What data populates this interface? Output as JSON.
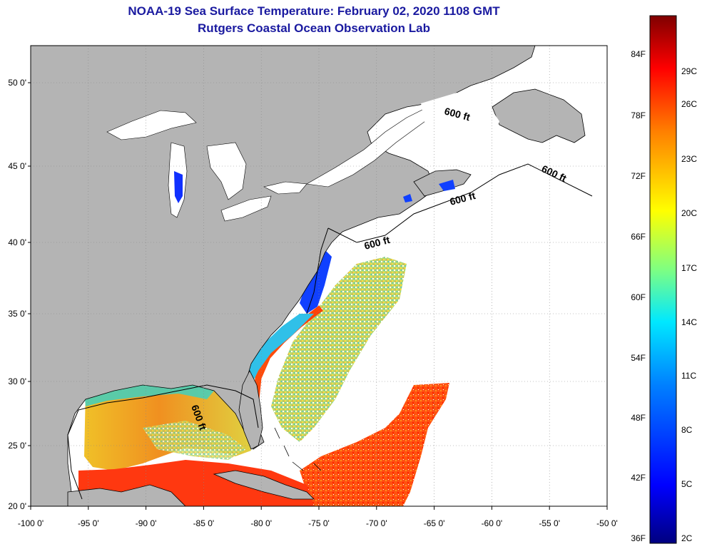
{
  "title": {
    "line1": "NOAA-19 Sea Surface Temperature:  February 02, 2020 1108 GMT",
    "line2": "Rutgers Coastal Ocean Observation Lab"
  },
  "map": {
    "lat_labels": [
      "50 0'",
      "45 0'",
      "40 0'",
      "35 0'",
      "30 0'",
      "25 0'",
      "20 0'"
    ],
    "lat_values": [
      50,
      45,
      40,
      35,
      30,
      25,
      20
    ],
    "lon_labels": [
      "-100 0'",
      "-95 0'",
      "-90 0'",
      "-85 0'",
      "-80 0'",
      "-75 0'",
      "-70 0'",
      "-65 0'",
      "-60 0'",
      "-55 0'",
      "-50 0'"
    ],
    "lon_values": [
      -100,
      -95,
      -90,
      -85,
      -80,
      -75,
      -70,
      -65,
      -60,
      -55,
      -50
    ],
    "lon_range": [
      -100,
      -50
    ],
    "lat_range": [
      20,
      52
    ],
    "contour_label": "600 ft",
    "contour_label_count": 5,
    "land_color": "#b4b4b4",
    "no_data_color": "#ffffff"
  },
  "colorbar": {
    "fahrenheit_labels": [
      "84F",
      "78F",
      "72F",
      "66F",
      "60F",
      "54F",
      "48F",
      "42F",
      "36F"
    ],
    "celsius_labels": [
      "29C",
      "26C",
      "23C",
      "20C",
      "17C",
      "14C",
      "11C",
      "8C",
      "5C",
      "2C"
    ],
    "colors": [
      "#00007f",
      "#0000ff",
      "#007fff",
      "#00ffff",
      "#7fff7f",
      "#ffff00",
      "#ff7f00",
      "#ff0000",
      "#7f0000"
    ]
  }
}
